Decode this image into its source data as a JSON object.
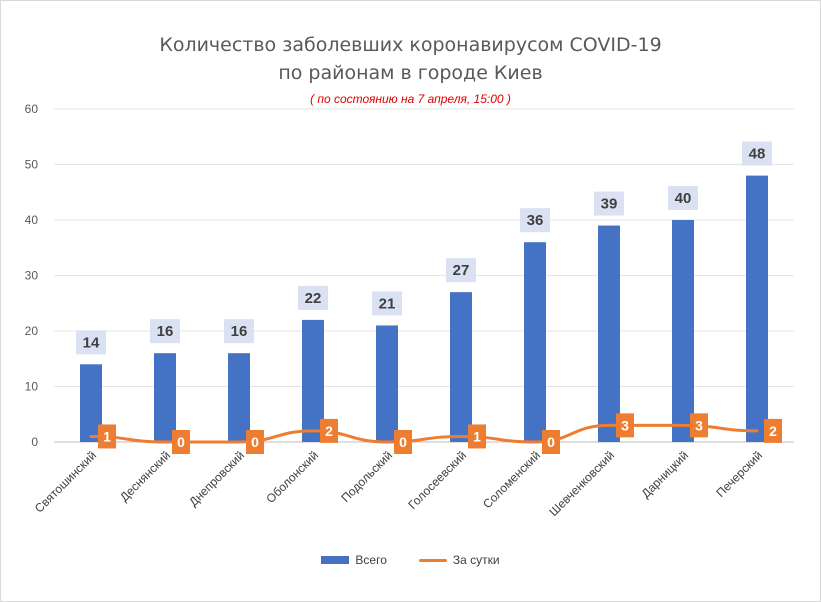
{
  "chart_data": {
    "type": "bar",
    "title_line1": "Количество заболевших коронавирусом COVID-19",
    "title_line2": "по районам в городе Киев",
    "subtitle": "( по состоянию на 7 апреля, 15:00 )",
    "categories": [
      "Святошинский",
      "Деснянский",
      "Днепровский",
      "Оболонский",
      "Подольский",
      "Голосеевский",
      "Соломенский",
      "Шевченковский",
      "Дарницкий",
      "Печерский"
    ],
    "series": [
      {
        "name": "Всего",
        "type": "bar",
        "color": "#4472c4",
        "values": [
          14,
          16,
          16,
          22,
          21,
          27,
          36,
          39,
          40,
          48
        ]
      },
      {
        "name": "За сутки",
        "type": "line",
        "color": "#ed7d31",
        "values": [
          1,
          0,
          0,
          2,
          0,
          1,
          0,
          3,
          3,
          2
        ]
      }
    ],
    "ylim": [
      0,
      60
    ],
    "yticks": [
      0,
      10,
      20,
      30,
      40,
      50,
      60
    ],
    "grid": true,
    "legend_position": "bottom"
  }
}
